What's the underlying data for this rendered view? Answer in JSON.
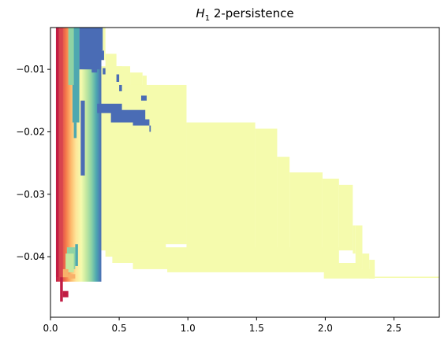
{
  "chart_data": {
    "type": "heatmap",
    "title_symbol": "H",
    "title_subscript": "1",
    "title_rest": " 2-persistence",
    "xlabel": "",
    "ylabel": "",
    "xlim": [
      0.0,
      2.83
    ],
    "ylim": [
      -0.0497,
      -0.0033
    ],
    "xticks": [
      0.0,
      0.5,
      1.0,
      1.5,
      2.0,
      2.5
    ],
    "xtick_labels": [
      "0.0",
      "0.5",
      "1.0",
      "1.5",
      "2.0",
      "2.5"
    ],
    "yticks": [
      -0.01,
      -0.02,
      -0.03,
      -0.04
    ],
    "ytick_labels": [
      "−0.01",
      "−0.02",
      "−0.03",
      "−0.04"
    ],
    "grid": false,
    "colormap": "Spectral",
    "colors": {
      "pale_yellow": "#f5fbad",
      "blue": "#4a6cb5",
      "teal": "#4ea8b0",
      "mint": "#8fd3a4",
      "green": "#c4e9a0",
      "orange": "#f8b06a",
      "red": "#d8444e",
      "crimson": "#c11d44"
    },
    "regions": [
      {
        "color": "pale_yellow",
        "x": [
          0.37,
          0.4
        ],
        "y": [
          -0.0085,
          -0.0033
        ]
      },
      {
        "color": "pale_yellow",
        "x": [
          0.4,
          0.48
        ],
        "y": [
          -0.0108,
          -0.0075
        ]
      },
      {
        "color": "pale_yellow",
        "x": [
          0.48,
          0.52
        ],
        "y": [
          -0.012,
          -0.0095
        ]
      },
      {
        "color": "pale_yellow",
        "x": [
          0.33,
          0.58
        ],
        "y": [
          -0.0135,
          -0.0095
        ]
      },
      {
        "color": "pale_yellow",
        "x": [
          0.58,
          0.67
        ],
        "y": [
          -0.0145,
          -0.0105
        ]
      },
      {
        "color": "pale_yellow",
        "x": [
          0.67,
          0.7
        ],
        "y": [
          -0.015,
          -0.011
        ]
      },
      {
        "color": "pale_yellow",
        "x": [
          0.33,
          0.84
        ],
        "y": [
          -0.0175,
          -0.0125
        ]
      },
      {
        "color": "pale_yellow",
        "x": [
          0.84,
          0.89
        ],
        "y": [
          -0.0195,
          -0.0145
        ]
      },
      {
        "color": "pale_yellow",
        "x": [
          0.89,
          0.93
        ],
        "y": [
          -0.0205,
          -0.0165
        ]
      },
      {
        "color": "pale_yellow",
        "x": [
          0.25,
          0.99
        ],
        "y": [
          -0.038,
          -0.0125
        ]
      },
      {
        "color": "pale_yellow",
        "x": [
          0.99,
          1.49
        ],
        "y": [
          -0.039,
          -0.0185
        ]
      },
      {
        "color": "pale_yellow",
        "x": [
          1.49,
          1.65
        ],
        "y": [
          -0.039,
          -0.0195
        ]
      },
      {
        "color": "pale_yellow",
        "x": [
          1.65,
          1.74
        ],
        "y": [
          -0.039,
          -0.024
        ]
      },
      {
        "color": "pale_yellow",
        "x": [
          1.74,
          1.98
        ],
        "y": [
          -0.039,
          -0.0265
        ]
      },
      {
        "color": "pale_yellow",
        "x": [
          1.98,
          2.1
        ],
        "y": [
          -0.039,
          -0.0275
        ]
      },
      {
        "color": "pale_yellow",
        "x": [
          2.1,
          2.2
        ],
        "y": [
          -0.039,
          -0.0285
        ]
      },
      {
        "color": "pale_yellow",
        "x": [
          2.2,
          2.22
        ],
        "y": [
          -0.0395,
          -0.035
        ]
      },
      {
        "color": "pale_yellow",
        "x": [
          2.22,
          2.27
        ],
        "y": [
          -0.042,
          -0.035
        ]
      },
      {
        "color": "pale_yellow",
        "x": [
          2.27,
          2.32
        ],
        "y": [
          -0.043,
          -0.0395
        ]
      },
      {
        "color": "pale_yellow",
        "x": [
          2.32,
          2.36
        ],
        "y": [
          -0.0435,
          -0.0405
        ]
      },
      {
        "color": "pale_yellow",
        "x": [
          2.36,
          2.83
        ],
        "y": [
          -0.0434,
          -0.0432
        ]
      },
      {
        "color": "pale_yellow",
        "x": [
          0.3,
          0.84
        ],
        "y": [
          -0.039,
          -0.0375
        ]
      },
      {
        "color": "pale_yellow",
        "x": [
          0.4,
          0.78
        ],
        "y": [
          -0.04,
          -0.0388
        ]
      },
      {
        "color": "pale_yellow",
        "x": [
          0.45,
          0.7
        ],
        "y": [
          -0.041,
          -0.0398
        ]
      },
      {
        "color": "pale_yellow",
        "x": [
          0.6,
          2.1
        ],
        "y": [
          -0.042,
          -0.0385
        ]
      },
      {
        "color": "pale_yellow",
        "x": [
          0.85,
          2.26
        ],
        "y": [
          -0.0425,
          -0.041
        ]
      },
      {
        "color": "pale_yellow",
        "x": [
          1.99,
          2.36
        ],
        "y": [
          -0.0435,
          -0.042
        ]
      },
      {
        "color": "blue",
        "x": [
          0.21,
          0.37
        ],
        "y": [
          -0.01,
          -0.0033
        ]
      },
      {
        "color": "blue",
        "x": [
          0.35,
          0.38
        ],
        "y": [
          -0.007,
          -0.0033
        ]
      },
      {
        "color": "blue",
        "x": [
          0.37,
          0.39
        ],
        "y": [
          -0.0085,
          -0.007
        ]
      },
      {
        "color": "blue",
        "x": [
          0.3,
          0.34
        ],
        "y": [
          -0.0105,
          -0.009
        ]
      },
      {
        "color": "blue",
        "x": [
          0.38,
          0.4
        ],
        "y": [
          -0.0108,
          -0.0098
        ]
      },
      {
        "color": "blue",
        "x": [
          0.48,
          0.5
        ],
        "y": [
          -0.012,
          -0.0108
        ]
      },
      {
        "color": "blue",
        "x": [
          0.5,
          0.52
        ],
        "y": [
          -0.0135,
          -0.0125
        ]
      },
      {
        "color": "blue",
        "x": [
          0.34,
          0.52
        ],
        "y": [
          -0.017,
          -0.0155
        ]
      },
      {
        "color": "blue",
        "x": [
          0.44,
          0.69
        ],
        "y": [
          -0.0185,
          -0.0165
        ]
      },
      {
        "color": "blue",
        "x": [
          0.6,
          0.72
        ],
        "y": [
          -0.019,
          -0.018
        ]
      },
      {
        "color": "blue",
        "x": [
          0.72,
          0.73
        ],
        "y": [
          -0.02,
          -0.019
        ]
      },
      {
        "color": "blue",
        "x": [
          0.66,
          0.7
        ],
        "y": [
          -0.015,
          -0.0142
        ]
      },
      {
        "color": "blue",
        "x": [
          0.22,
          0.25
        ],
        "y": [
          -0.027,
          -0.015
        ]
      },
      {
        "color": "teal",
        "x": [
          0.16,
          0.21
        ],
        "y": [
          -0.0185,
          -0.0033
        ]
      },
      {
        "color": "teal",
        "x": [
          0.17,
          0.19
        ],
        "y": [
          -0.021,
          -0.0185
        ]
      },
      {
        "color": "teal",
        "x": [
          0.18,
          0.2
        ],
        "y": [
          -0.0415,
          -0.038
        ]
      },
      {
        "color": "mint",
        "x": [
          0.13,
          0.17
        ],
        "y": [
          -0.0125,
          -0.0033
        ]
      },
      {
        "color": "mint",
        "x": [
          0.12,
          0.18
        ],
        "y": [
          -0.042,
          -0.0385
        ]
      },
      {
        "color": "green",
        "x": [
          0.11,
          0.17
        ],
        "y": [
          -0.0425,
          -0.0395
        ]
      },
      {
        "color": "orange",
        "x": [
          0.09,
          0.13
        ],
        "y": [
          -0.0433,
          -0.042
        ]
      },
      {
        "color": "orange",
        "x": [
          0.13,
          0.18
        ],
        "y": [
          -0.0435,
          -0.0428
        ]
      },
      {
        "color": "red",
        "x": [
          0.05,
          0.09
        ],
        "y": [
          -0.0433,
          -0.0033
        ]
      },
      {
        "color": "crimson",
        "x": [
          0.04,
          0.06
        ],
        "y": [
          -0.0433,
          -0.0033
        ]
      },
      {
        "color": "crimson",
        "x": [
          0.07,
          0.09
        ],
        "y": [
          -0.0472,
          -0.0433
        ]
      },
      {
        "color": "crimson",
        "x": [
          0.09,
          0.13
        ],
        "y": [
          -0.0465,
          -0.0455
        ]
      }
    ],
    "gradient_strip": {
      "x": [
        0.04,
        0.37
      ],
      "y": [
        -0.044,
        -0.0033
      ],
      "stops": [
        "#c11d44",
        "#d8444e",
        "#f57a4b",
        "#fdbb6d",
        "#fee69a",
        "#f5fbad",
        "#c4e9a0",
        "#8fd3a4",
        "#4ea8b0",
        "#4a6cb5"
      ]
    }
  }
}
